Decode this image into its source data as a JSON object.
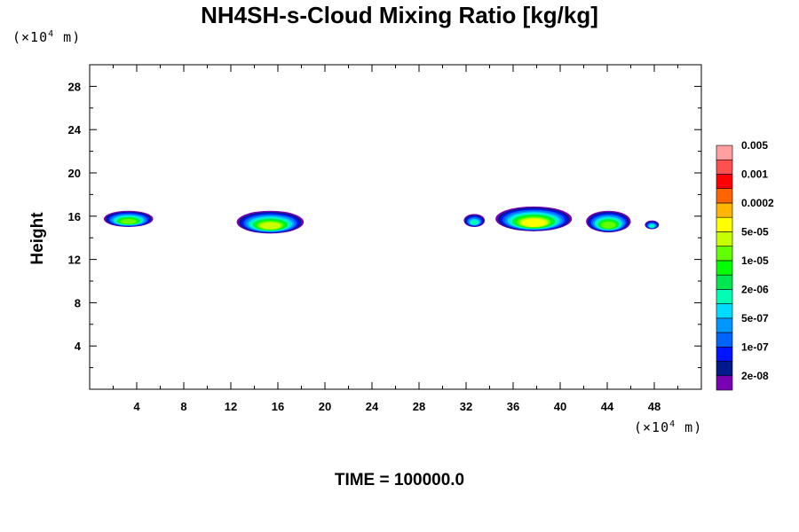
{
  "chart_data": {
    "type": "heatmap",
    "title": "NH4SH-s-Cloud Mixing Ratio [kg/kg]",
    "ylabel": "Height",
    "xlabel": "",
    "x_unit": "(×10⁴ m)",
    "y_unit": "(×10⁴ m)",
    "xlim": [
      0,
      52
    ],
    "ylim": [
      0,
      30
    ],
    "x_ticks": [
      4,
      8,
      12,
      16,
      20,
      24,
      28,
      32,
      36,
      40,
      44,
      48
    ],
    "y_ticks": [
      4,
      8,
      12,
      16,
      20,
      24,
      28
    ],
    "colorbar": {
      "colors": [
        "#7a00b4",
        "#001a8c",
        "#0014ff",
        "#0064ff",
        "#0096ff",
        "#00dcff",
        "#00ffb4",
        "#00e650",
        "#00ff00",
        "#64ff00",
        "#c8ff00",
        "#ffff00",
        "#ffb400",
        "#ff6400",
        "#ff0000",
        "#ff5050",
        "#ffa0a0"
      ],
      "labels": [
        "2e-08",
        "1e-07",
        "5e-07",
        "2e-06",
        "1e-05",
        "5e-05",
        "0.0002",
        "0.001",
        "0.005"
      ]
    },
    "cloud_layers": [
      {
        "x_range": [
          1.2,
          5.4
        ],
        "y_range": [
          15.0,
          16.5
        ],
        "peak_level": 9
      },
      {
        "x_range": [
          12.5,
          18.2
        ],
        "y_range": [
          14.4,
          16.5
        ],
        "peak_level": 10
      },
      {
        "x_range": [
          31.8,
          33.6
        ],
        "y_range": [
          15.0,
          16.2
        ],
        "peak_level": 6
      },
      {
        "x_range": [
          34.5,
          41.0
        ],
        "y_range": [
          14.6,
          16.9
        ],
        "peak_level": 11
      },
      {
        "x_range": [
          42.2,
          46.0
        ],
        "y_range": [
          14.5,
          16.5
        ],
        "peak_level": 9
      },
      {
        "x_range": [
          47.2,
          48.4
        ],
        "y_range": [
          14.8,
          15.6
        ],
        "peak_level": 6
      }
    ]
  },
  "footer_text": "TIME = 100000.0"
}
